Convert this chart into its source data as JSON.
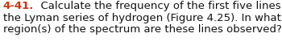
{
  "label": "4-41.",
  "label_color": "#cc3311",
  "body_line1": "  Calculate the frequency of the first five lines in",
  "body_line2": "the Lyman series of hydrogen (Figure 4.25). In what",
  "body_line3": "region(s) of the spectrum are these lines observed?",
  "font_size": 9.5,
  "background_color": "#ffffff",
  "text_color": "#111111",
  "fig_width": 3.5,
  "fig_height": 0.58,
  "dpi": 100
}
